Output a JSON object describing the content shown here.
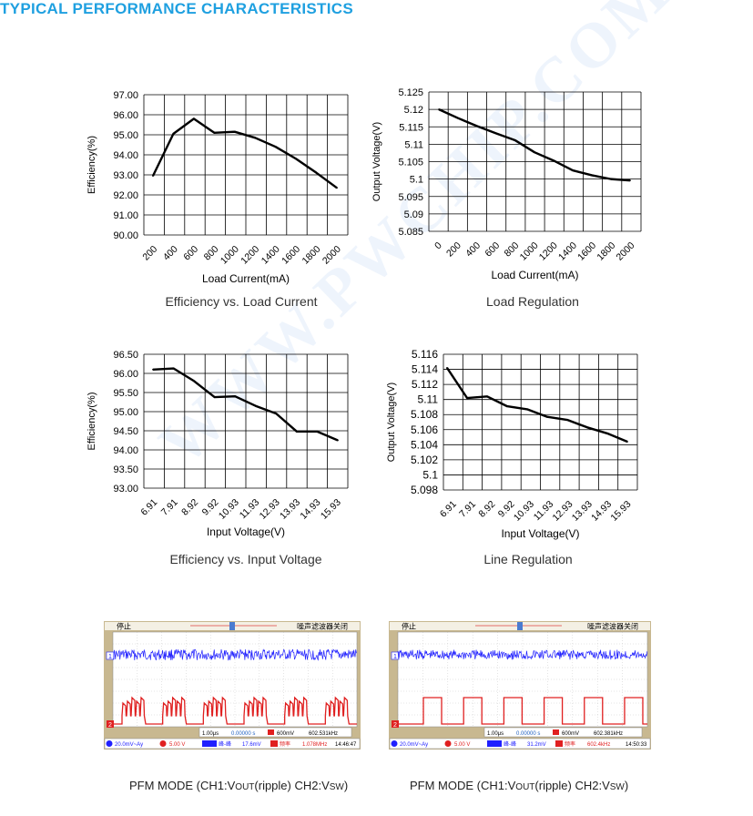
{
  "heading": "TYPICAL PERFORMANCE CHARACTERISTICS",
  "watermark": "WWW.PWCHIP.COM",
  "colors": {
    "heading": "#1fa0e0",
    "line": "#000000",
    "ch1": "#2020ff",
    "ch2": "#e02020",
    "scope_frame": "#c8b890"
  },
  "chart_data": [
    {
      "id": "eff_load",
      "type": "line",
      "caption": "Efficiency vs. Load Current",
      "xlabel": "Load Current(mA)",
      "ylabel": "Efficiency(%)",
      "categories": [
        "200",
        "400",
        "600",
        "800",
        "1000",
        "1200",
        "1400",
        "1600",
        "1800",
        "2000"
      ],
      "y_ticks": [
        "97.00",
        "96.00",
        "95.00",
        "94.00",
        "93.00",
        "92.00",
        "91.00",
        "90.00"
      ],
      "ylim": [
        90,
        97
      ],
      "grid": true,
      "x": [
        100,
        300,
        500,
        700,
        900,
        1100,
        1300,
        1500,
        1700,
        1900
      ],
      "values": [
        92.95,
        95.05,
        95.8,
        95.1,
        95.15,
        94.85,
        94.4,
        93.8,
        93.1,
        92.35
      ]
    },
    {
      "id": "load_reg",
      "type": "line",
      "caption": "Load Regulation",
      "xlabel": "Load Current(mA)",
      "ylabel": "Output Voltage(V)",
      "categories": [
        "0",
        "200",
        "400",
        "600",
        "800",
        "1000",
        "1200",
        "1400",
        "1600",
        "1800",
        "2000"
      ],
      "y_ticks": [
        "5.125",
        "5.12",
        "5.115",
        "5.11",
        "5.105",
        "5.1",
        "5.095",
        "5.09",
        "5.085"
      ],
      "ylim": [
        5.085,
        5.125
      ],
      "grid": true,
      "x": [
        0,
        200,
        400,
        600,
        800,
        1000,
        1200,
        1400,
        1600,
        1800,
        2000
      ],
      "values": [
        5.12,
        5.1175,
        5.1152,
        5.1131,
        5.1111,
        5.1077,
        5.1053,
        5.1025,
        5.1011,
        5.1,
        5.0996
      ]
    },
    {
      "id": "eff_vin",
      "type": "line",
      "caption": "Efficiency vs. Input Voltage",
      "xlabel": "Input Voltage(V)",
      "ylabel": "Efficiency(%)",
      "categories": [
        "6.91",
        "7.91",
        "8.92",
        "9.92",
        "10.93",
        "11.93",
        "12.93",
        "13.93",
        "14.93",
        "15.93"
      ],
      "y_ticks": [
        "96.50",
        "96.00",
        "95.50",
        "95.00",
        "94.50",
        "94.00",
        "93.50",
        "93.00"
      ],
      "ylim": [
        93,
        96.5
      ],
      "grid": true,
      "x": [
        "6.91",
        "7.91",
        "8.92",
        "9.92",
        "10.93",
        "11.93",
        "12.93",
        "13.93",
        "14.93",
        "15.93"
      ],
      "values": [
        96.1,
        96.13,
        95.8,
        95.38,
        95.4,
        95.15,
        94.95,
        94.48,
        94.48,
        94.25
      ]
    },
    {
      "id": "line_reg",
      "type": "line",
      "caption": "Line Regulation",
      "xlabel": "Input Voltage(V)",
      "ylabel": "Output Voltage(V)",
      "categories": [
        "6.91",
        "7.91",
        "8.92",
        "9.92",
        "10.93",
        "11.93",
        "12.93",
        "13.93",
        "14.93",
        "15.93"
      ],
      "y_ticks": [
        "5.116",
        "5.114",
        "5.112",
        "5.11",
        "5.108",
        "5.106",
        "5.104",
        "5.102",
        "5.1",
        "5.098"
      ],
      "ylim": [
        5.098,
        5.116
      ],
      "grid": true,
      "x": [
        "6.91",
        "7.91",
        "8.92",
        "9.92",
        "10.93",
        "11.93",
        "12.93",
        "13.93",
        "14.93",
        "15.93"
      ],
      "values": [
        5.1142,
        5.1102,
        5.1104,
        5.1091,
        5.1087,
        5.1077,
        5.1073,
        5.1063,
        5.1055,
        5.1044
      ]
    }
  ],
  "scopes": [
    {
      "id": "scope1",
      "status": "停止",
      "filter": "噪声滤波器关闭",
      "ch1_marker": "1",
      "ch2_marker": "2",
      "time_div": "1.00μs",
      "trig_pos": "0.00000 s",
      "trig_level": "600mV",
      "trig_freq": "602.531kHz",
      "ch1_scale": "20.0mV~Ay",
      "ch2_scale": "5.00 V",
      "meas1_label": "峰-峰",
      "meas1_value": "17.6mV",
      "meas2_label": "频率",
      "meas2_value": "1.078MHz",
      "clock": "14:46:47",
      "caption_a": "PFM MODE (CH1:V",
      "caption_b": "OUT",
      "caption_c": "(ripple) CH2:V",
      "caption_d": "SW",
      "caption_e": ")"
    },
    {
      "id": "scope2",
      "status": "停止",
      "filter": "噪声滤波器关闭",
      "ch1_marker": "1",
      "ch2_marker": "2",
      "time_div": "1.00μs",
      "trig_pos": "0.00000 s",
      "trig_level": "600mV",
      "trig_freq": "602.381kHz",
      "ch1_scale": "20.0mV~Ay",
      "ch2_scale": "5.00 V",
      "meas1_label": "峰-峰",
      "meas1_value": "31.2mV",
      "meas2_label": "频率",
      "meas2_value": "602.4kHz",
      "clock": "14:50:33",
      "caption_a": "PFM MODE (CH1:V",
      "caption_b": "OUT",
      "caption_c": "(ripple) CH2:V",
      "caption_d": "SW",
      "caption_e": ")"
    }
  ]
}
